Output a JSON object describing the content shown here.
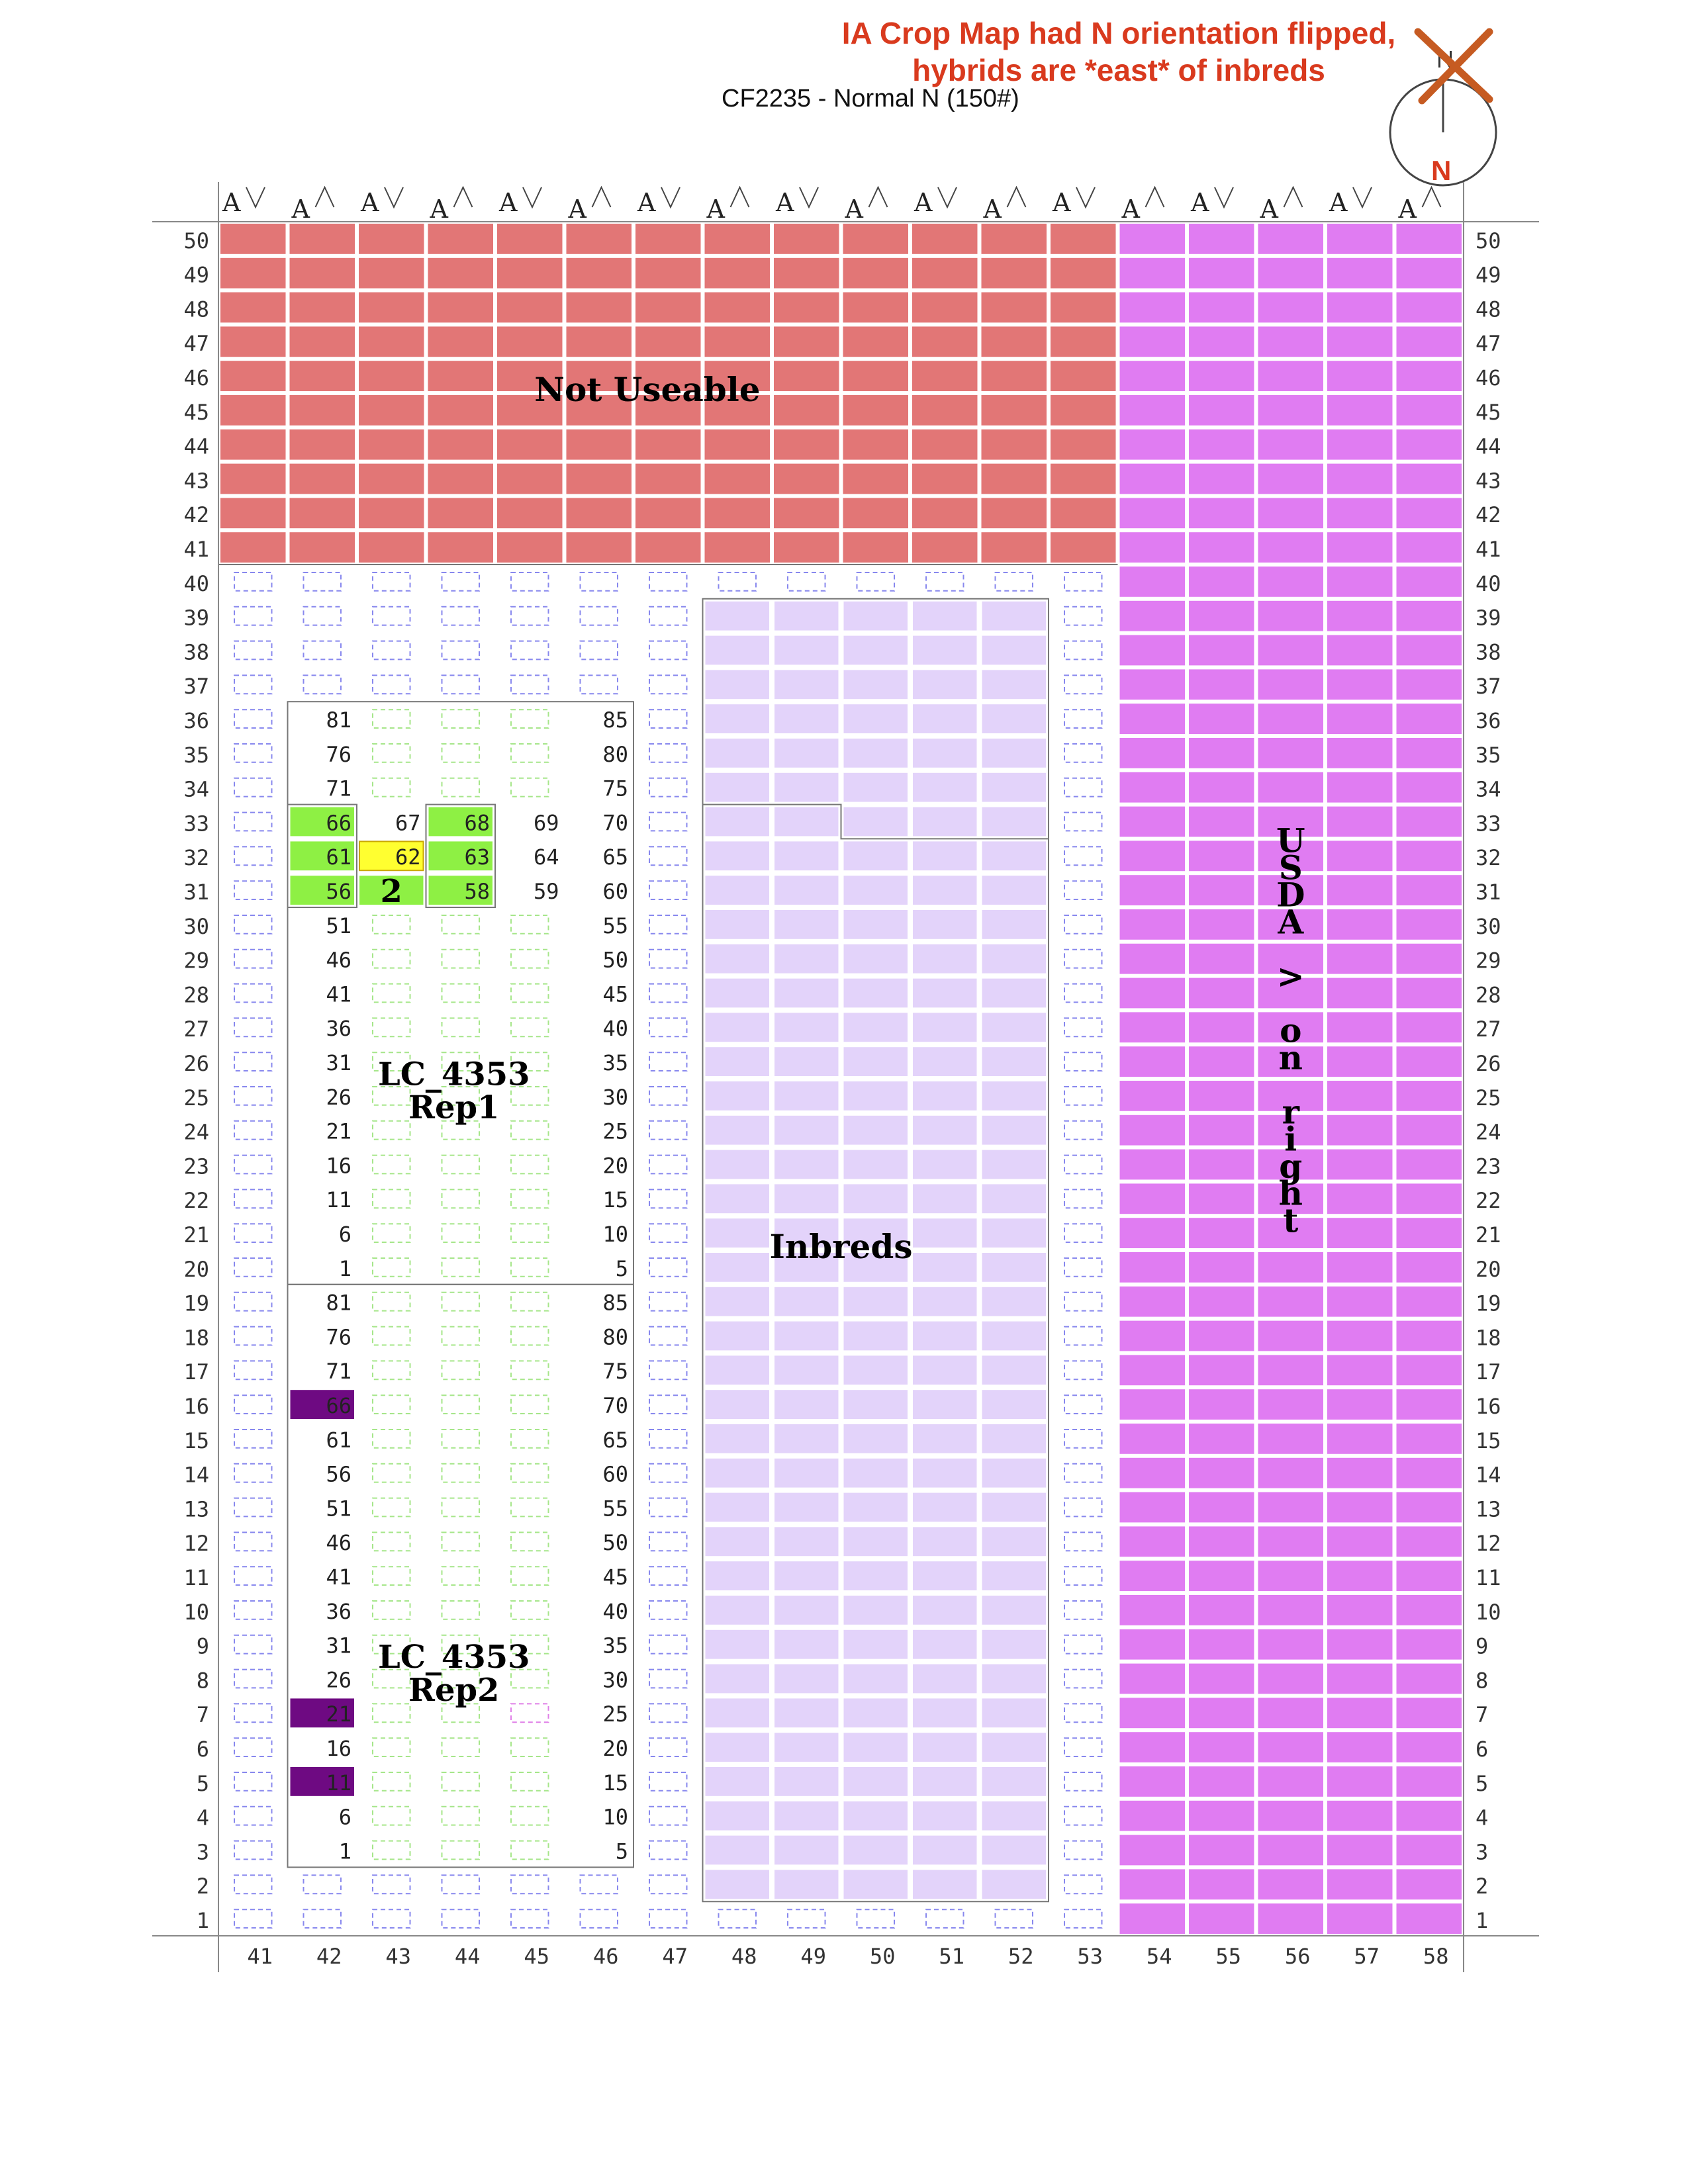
{
  "header": {
    "note_line1": "IA Crop Map had N orientation flipped,",
    "note_line2": "hybrids are *east* of inbreds",
    "subtitle": "CF2235 - Normal N (150#)",
    "compass": {
      "top_letter": "N",
      "bottom_letter": "N",
      "top_crossed_out": true
    }
  },
  "grid": {
    "col_min": 41,
    "col_max": 58,
    "row_min": 1,
    "row_max": 50,
    "column_markers": [
      "A",
      "A",
      "A",
      "A",
      "A",
      "A",
      "A",
      "A",
      "A",
      "A",
      "A",
      "A",
      "A",
      "A",
      "A",
      "A",
      "A",
      "A"
    ]
  },
  "colors": {
    "not_useable": "#e27676",
    "usda": "#e07cf2",
    "inbreds": "#e3d3fa",
    "green_selected": "#8ef044",
    "yellow_selected": "#ffff30",
    "purple_selected": "#6e0a82",
    "empty_dash": "#8888ee",
    "hybrid_dash": "#a6e68a"
  },
  "regions": {
    "not_useable": {
      "label": "Not Useable",
      "cols": [
        41,
        53
      ],
      "rows": [
        41,
        50
      ]
    },
    "usda": {
      "label": "USDA > on right",
      "cols": [
        54,
        58
      ],
      "rows": [
        1,
        50
      ]
    },
    "inbreds": {
      "label": "Inbreds",
      "cols": [
        48,
        52
      ],
      "rows": [
        2,
        39
      ],
      "notch": {
        "cols": [
          48,
          49
        ],
        "rows": [
          33,
          33
        ]
      }
    }
  },
  "blocks": [
    {
      "name_line1": "LC_4353",
      "name_line2": "Rep1",
      "cols": [
        42,
        46
      ],
      "rows": [
        20,
        36
      ],
      "left_labels": [
        1,
        6,
        11,
        16,
        21,
        26,
        31,
        36,
        41,
        46,
        51,
        56,
        61,
        66,
        71,
        76,
        81
      ],
      "right_labels": [
        5,
        10,
        15,
        20,
        25,
        30,
        35,
        40,
        45,
        50,
        55,
        60,
        65,
        70,
        75,
        80,
        85
      ]
    },
    {
      "name_line1": "LC_4353",
      "name_line2": "Rep2",
      "cols": [
        42,
        46
      ],
      "rows": [
        3,
        19
      ],
      "left_labels": [
        1,
        6,
        11,
        16,
        21,
        26,
        31,
        36,
        41,
        46,
        51,
        56,
        61,
        66,
        71,
        76,
        81
      ],
      "right_labels": [
        5,
        10,
        15,
        20,
        25,
        30,
        35,
        40,
        45,
        50,
        55,
        60,
        65,
        70,
        75,
        80,
        85
      ]
    }
  ],
  "highlighted_plots": [
    {
      "col": 42,
      "row": 33,
      "label": "66",
      "status": "green"
    },
    {
      "col": 43,
      "row": 33,
      "label": "67",
      "status": "plain"
    },
    {
      "col": 44,
      "row": 33,
      "label": "68",
      "status": "green"
    },
    {
      "col": 45,
      "row": 33,
      "label": "69",
      "status": "plain"
    },
    {
      "col": 42,
      "row": 32,
      "label": "61",
      "status": "green"
    },
    {
      "col": 43,
      "row": 32,
      "label": "62",
      "status": "yellow"
    },
    {
      "col": 44,
      "row": 32,
      "label": "63",
      "status": "green"
    },
    {
      "col": 45,
      "row": 32,
      "label": "64",
      "status": "plain"
    },
    {
      "col": 42,
      "row": 31,
      "label": "56",
      "status": "green"
    },
    {
      "col": 43,
      "row": 31,
      "label": "2",
      "status": "green-big"
    },
    {
      "col": 44,
      "row": 31,
      "label": "58",
      "status": "green"
    },
    {
      "col": 45,
      "row": 31,
      "label": "59",
      "status": "plain"
    },
    {
      "col": 42,
      "row": 16,
      "label": "66",
      "status": "purple"
    },
    {
      "col": 42,
      "row": 7,
      "label": "21",
      "status": "purple"
    },
    {
      "col": 42,
      "row": 5,
      "label": "11",
      "status": "purple"
    }
  ],
  "pink_dash_plots": [
    {
      "col": 45,
      "row": 7
    }
  ]
}
